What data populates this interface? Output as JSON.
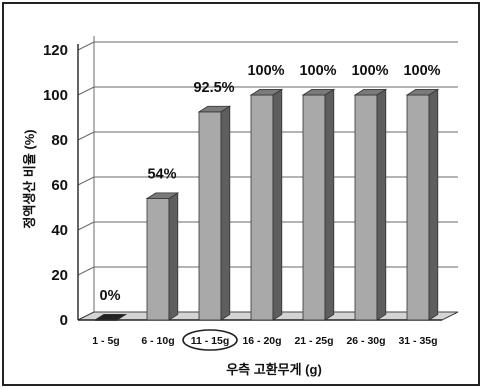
{
  "chart_data": {
    "type": "bar",
    "categories": [
      "1 - 5g",
      "6 - 10g",
      "11 - 15g",
      "16 - 20g",
      "21 - 25g",
      "26 - 30g",
      "31 - 35g"
    ],
    "values": [
      0,
      54,
      92.5,
      100,
      100,
      100,
      100
    ],
    "data_labels": [
      "0%",
      "54%",
      "92.5%",
      "100%",
      "100%",
      "100%",
      "100%"
    ],
    "title": "",
    "xlabel": "우측 고환무게 (g)",
    "ylabel": "정액생산 비율 (%)",
    "ylim": [
      0,
      120
    ],
    "yticks": [
      "0",
      "20",
      "40",
      "60",
      "80",
      "100",
      "120"
    ],
    "highlighted_category": "11 - 15g",
    "grid": true,
    "style": "3d",
    "colors": {
      "bar_front": "#a9a9a9",
      "bar_side": "#5e5e5e",
      "bar_top": "#7a7a7a",
      "grid": "#6a6a6a"
    }
  }
}
